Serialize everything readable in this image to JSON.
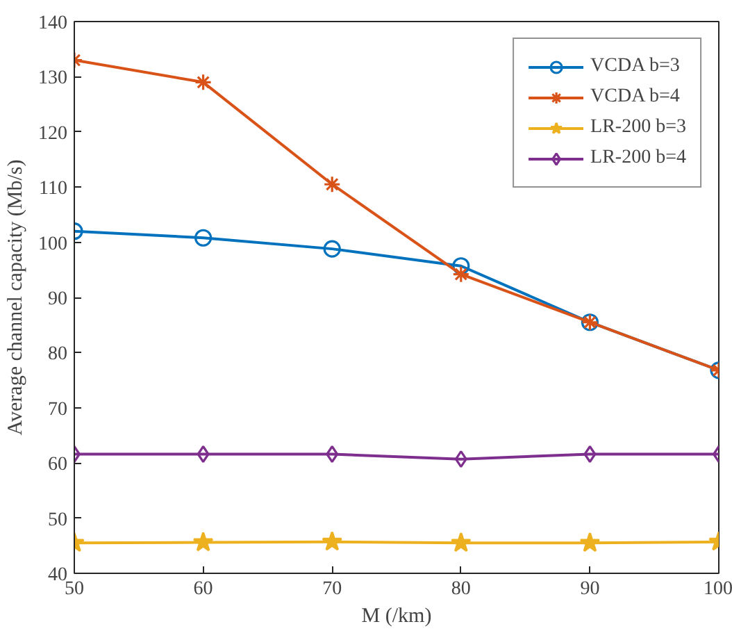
{
  "chart_data": {
    "type": "line",
    "xlabel": "M (/km)",
    "ylabel": "Average channel capacity (Mb/s)",
    "x": [
      50,
      60,
      70,
      80,
      90,
      100
    ],
    "series": [
      {
        "name": "VCDA b=3",
        "color": "#0072bd",
        "marker": "circle",
        "values": [
          102,
          100.8,
          98.8,
          95.7,
          85.5,
          76.8
        ]
      },
      {
        "name": "VCDA b=4",
        "color": "#d95319",
        "marker": "cross",
        "values": [
          133,
          129,
          110.5,
          94.2,
          85.5,
          76.8
        ]
      },
      {
        "name": "LR-200 b=3",
        "color": "#edb120",
        "marker": "star",
        "values": [
          45.5,
          45.6,
          45.7,
          45.5,
          45.5,
          45.7
        ]
      },
      {
        "name": "LR-200 b=4",
        "color": "#7e2f8e",
        "marker": "diamond",
        "values": [
          61.6,
          61.6,
          61.6,
          60.7,
          61.6,
          61.6
        ]
      }
    ],
    "xlim": [
      50,
      100
    ],
    "xticks": [
      50,
      60,
      70,
      80,
      90,
      100
    ],
    "ylim": [
      40,
      140
    ],
    "yticks": [
      40,
      50,
      60,
      70,
      80,
      90,
      100,
      110,
      120,
      130,
      140
    ],
    "grid": false,
    "legend": "top right",
    "line_style": "solid"
  }
}
